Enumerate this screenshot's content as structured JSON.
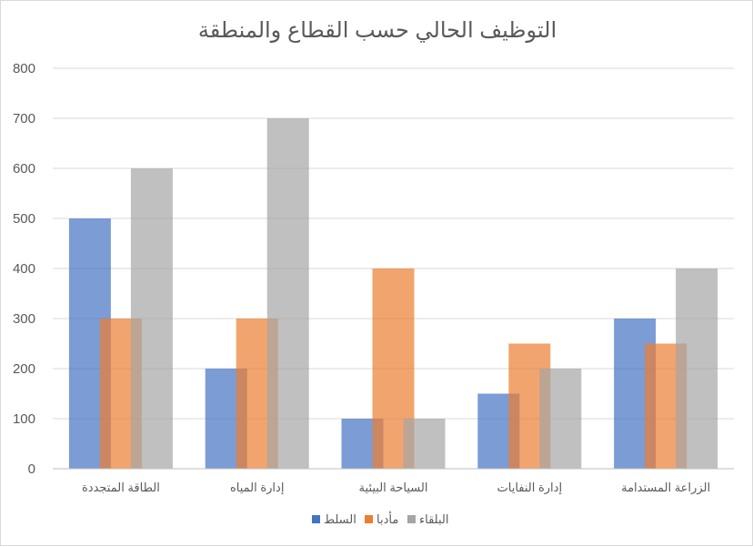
{
  "chart_data": {
    "type": "bar",
    "title": "التوظيف الحالي حسب القطاع والمنطقة",
    "xlabel": "",
    "ylabel": "",
    "categories": [
      "الطاقة المتجددة",
      "إدارة المياه",
      "السياحة البيئية",
      "إدارة النفايات",
      "الزراعة المستدامة"
    ],
    "series": [
      {
        "name": "السلط",
        "values": [
          500,
          200,
          100,
          150,
          300
        ],
        "color": "#4472c4"
      },
      {
        "name": "مأدبا",
        "values": [
          300,
          300,
          400,
          250,
          250
        ],
        "color": "#ed7d31"
      },
      {
        "name": "البلقاء",
        "values": [
          600,
          700,
          100,
          200,
          400
        ],
        "color": "#a5a5a5"
      }
    ],
    "ylim": [
      0,
      800
    ],
    "yticks": [
      0,
      100,
      200,
      300,
      400,
      500,
      600,
      700,
      800
    ],
    "grid": true,
    "legend_position": "bottom",
    "bar_overlap": true,
    "bar_opacity": 0.7
  }
}
